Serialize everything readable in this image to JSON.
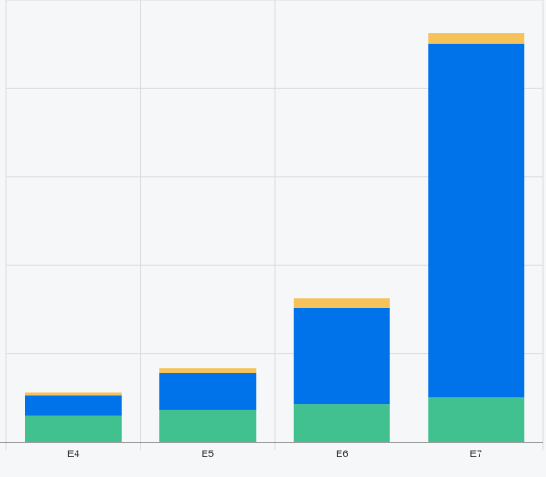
{
  "chart_data": {
    "type": "stacked_bar",
    "categories": [
      "E4",
      "E5",
      "E6",
      "E7"
    ],
    "series": [
      {
        "color": "#41c18f",
        "values": [
          3.0,
          3.7,
          4.3,
          5.1
        ]
      },
      {
        "color": "#0073ea",
        "values": [
          2.3,
          4.2,
          10.9,
          40.0
        ]
      },
      {
        "color": "#f6c35b",
        "values": [
          0.4,
          0.5,
          1.1,
          1.2
        ]
      }
    ],
    "ylim": [
      0,
      50
    ],
    "yticks": [
      0,
      10,
      20,
      30,
      40,
      50
    ],
    "grid": true
  }
}
